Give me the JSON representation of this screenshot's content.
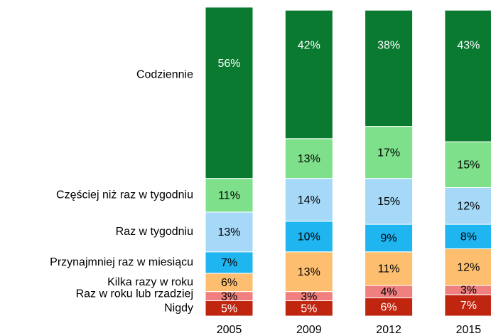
{
  "chart_data": {
    "type": "stacked_bar",
    "categories": [
      "2005",
      "2009",
      "2012",
      "2015"
    ],
    "ylim": [
      0,
      101
    ],
    "series": [
      {
        "name": "Nigdy",
        "color": "#c0250f",
        "label_color": "#ffffff",
        "values": [
          5,
          5,
          6,
          7
        ],
        "value_labels": [
          "5%",
          "5%",
          "6%",
          "7%"
        ]
      },
      {
        "name": "Raz w roku lub rzadziej",
        "color": "#f08080",
        "label_color": "#000000",
        "values": [
          3,
          3,
          4,
          3
        ],
        "value_labels": [
          "3%",
          "3%",
          "4%",
          "3%"
        ]
      },
      {
        "name": "Kilka razy w roku",
        "color": "#fdbf6f",
        "label_color": "#000000",
        "values": [
          6,
          13,
          11,
          12
        ],
        "value_labels": [
          "6%",
          "13%",
          "11%",
          "12%"
        ]
      },
      {
        "name": "Przynajmniej raz w miesiącu",
        "color": "#1fb5f0",
        "label_color": "#000000",
        "values": [
          7,
          10,
          9,
          8
        ],
        "value_labels": [
          "7%",
          "10%",
          "9%",
          "8%"
        ]
      },
      {
        "name": "Raz w tygodniu",
        "color": "#a6d8f8",
        "label_color": "#000000",
        "values": [
          13,
          14,
          15,
          12
        ],
        "value_labels": [
          "13%",
          "14%",
          "15%",
          "12%"
        ]
      },
      {
        "name": "Częściej niż raz w tygodniu",
        "color": "#7ee08a",
        "label_color": "#000000",
        "values": [
          11,
          13,
          17,
          15
        ],
        "value_labels": [
          "11%",
          "13%",
          "17%",
          "15%"
        ]
      },
      {
        "name": "Codziennie",
        "color": "#0a7a30",
        "label_color": "#ffffff",
        "values": [
          56,
          42,
          38,
          43
        ],
        "value_labels": [
          "56%",
          "42%",
          "38%",
          "43%"
        ]
      }
    ]
  }
}
